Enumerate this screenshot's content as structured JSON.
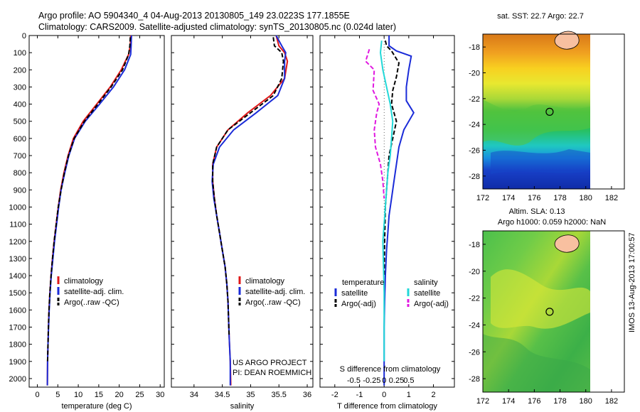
{
  "title": {
    "line1": "Argo profile: AO 5904340_4 04-Aug-2013 20130805_149 23.0223S 177.1855E",
    "line2": "Climatology: CARS2009. Satellite-adjusted climatology: synTS_20130805.nc (0.024d later)"
  },
  "side_label": "IMOS 13-Aug-2013 17:00:57",
  "colors": {
    "climatology": "#e01818",
    "satellite": "#1a2bd8",
    "argo": "#000000",
    "sal_sat": "#22d8d8",
    "sal_argo": "#e018e0",
    "land": "#f8c0a0"
  },
  "chart_data": [
    {
      "type": "line",
      "xlabel": "temperature (deg C)",
      "ylabel": "",
      "xlim": [
        -2,
        31
      ],
      "ylim": [
        2050,
        0
      ],
      "x_ticks": [
        0,
        5,
        10,
        15,
        20,
        25,
        30
      ],
      "y_ticks": [
        0,
        100,
        200,
        300,
        400,
        500,
        600,
        700,
        800,
        900,
        1000,
        1100,
        1200,
        1300,
        1400,
        1500,
        1600,
        1700,
        1800,
        1900,
        2000
      ],
      "legend": [
        "climatology",
        "satellite-adj. clim.",
        "Argo(..raw -QC)"
      ],
      "series": [
        {
          "name": "climatology",
          "color_key": "climatology",
          "x": [
            22.8,
            22.7,
            22.3,
            20.5,
            17.8,
            14.5,
            11.2,
            8.8,
            7.5,
            6.5,
            5.7,
            5.1,
            4.6,
            4.1,
            3.7,
            3.35,
            3.05,
            2.85,
            2.7,
            2.6,
            2.5,
            2.45
          ],
          "y": [
            0,
            60,
            110,
            200,
            300,
            400,
            500,
            600,
            700,
            800,
            900,
            1000,
            1100,
            1200,
            1300,
            1400,
            1500,
            1600,
            1700,
            1800,
            1900,
            2040
          ]
        },
        {
          "name": "satellite-adj. clim.",
          "color_key": "satellite",
          "x": [
            23.0,
            22.9,
            22.8,
            21.3,
            18.6,
            15.2,
            11.7,
            9.1,
            7.7,
            6.7,
            5.8,
            5.2,
            4.7,
            4.2,
            3.8,
            3.4,
            3.1,
            2.9,
            2.75,
            2.6,
            2.5,
            2.45
          ],
          "y": [
            0,
            60,
            110,
            200,
            300,
            400,
            500,
            600,
            700,
            800,
            900,
            1000,
            1100,
            1200,
            1300,
            1400,
            1500,
            1600,
            1700,
            1800,
            1900,
            2040
          ]
        },
        {
          "name": "Argo(..raw -QC)",
          "color_key": "argo",
          "dashed": true,
          "x": [
            22.7,
            22.6,
            22.3,
            20.8,
            18.0,
            14.8,
            11.5,
            9.0,
            7.6,
            6.6,
            5.8,
            5.1,
            4.6,
            4.1,
            3.7,
            3.35,
            3.05,
            2.85,
            2.7,
            2.6,
            2.5
          ],
          "y": [
            10,
            60,
            110,
            200,
            300,
            400,
            500,
            600,
            700,
            800,
            900,
            1000,
            1100,
            1200,
            1300,
            1400,
            1500,
            1600,
            1700,
            1800,
            1900
          ]
        }
      ]
    },
    {
      "type": "line",
      "xlabel": "salinity",
      "xlim": [
        33.6,
        36.1
      ],
      "ylim": [
        2050,
        0
      ],
      "x_ticks": [
        34,
        34.5,
        35,
        35.5,
        36
      ],
      "legend": [
        "climatology",
        "satellite-adj. clim.",
        "Argo(..raw -QC)"
      ],
      "annotation": [
        "US ARGO PROJECT",
        "PI: DEAN ROEMMICH"
      ],
      "series": [
        {
          "name": "climatology",
          "color_key": "climatology",
          "x": [
            35.45,
            35.5,
            35.6,
            35.65,
            35.6,
            35.35,
            34.95,
            34.6,
            34.4,
            34.33,
            34.33,
            34.36,
            34.4,
            34.45,
            34.5,
            34.55,
            34.58,
            34.6,
            34.61,
            34.62,
            34.64,
            34.65
          ],
          "y": [
            0,
            60,
            100,
            150,
            250,
            350,
            450,
            550,
            650,
            750,
            850,
            950,
            1050,
            1150,
            1250,
            1350,
            1450,
            1550,
            1650,
            1750,
            1900,
            2040
          ]
        },
        {
          "name": "satellite-adj. clim.",
          "color_key": "satellite",
          "x": [
            35.45,
            35.55,
            35.62,
            35.6,
            35.6,
            35.48,
            35.1,
            34.7,
            34.45,
            34.34,
            34.32,
            34.35,
            34.4,
            34.45,
            34.5,
            34.55,
            34.58,
            34.6,
            34.61,
            34.62,
            34.64,
            34.64
          ],
          "y": [
            0,
            60,
            100,
            150,
            250,
            350,
            450,
            550,
            650,
            750,
            850,
            950,
            1050,
            1150,
            1250,
            1350,
            1450,
            1550,
            1650,
            1750,
            1900,
            2040
          ]
        },
        {
          "name": "Argo(..raw -QC)",
          "color_key": "argo",
          "dashed": true,
          "x": [
            35.4,
            35.42,
            35.55,
            35.58,
            35.55,
            35.4,
            35.0,
            34.6,
            34.4,
            34.33,
            34.33,
            34.36,
            34.4,
            34.45,
            34.5,
            34.55,
            34.58,
            34.6,
            34.61,
            34.62
          ],
          "y": [
            10,
            60,
            100,
            150,
            250,
            350,
            450,
            550,
            650,
            750,
            850,
            950,
            1050,
            1150,
            1250,
            1350,
            1450,
            1550,
            1650,
            1750
          ]
        }
      ]
    },
    {
      "type": "line",
      "xlabel": "T difference from climatology",
      "x_secondary_label": "S difference from climatology",
      "xlim": [
        -2.6,
        2.85
      ],
      "ylim": [
        2050,
        0
      ],
      "x_ticks": [
        -2,
        -1,
        0,
        1,
        2
      ],
      "x_secondary_ticks": [
        "-0.5",
        "-0.25",
        "0",
        "0.25",
        "0.5"
      ],
      "legend_groups": [
        {
          "title": "temperature",
          "items": [
            "satellite",
            "Argo(-adj)"
          ]
        },
        {
          "title": "salinity",
          "items": [
            "satellite",
            "Argo(-adj)"
          ]
        }
      ],
      "series": [
        {
          "name": "temperature satellite",
          "color_key": "satellite",
          "x": [
            0.2,
            0.2,
            0.5,
            1.1,
            1.0,
            0.9,
            0.9,
            1.2,
            0.8,
            0.6,
            0.5,
            0.4,
            0.3,
            0.2,
            0.15,
            0.1,
            0.05,
            0.02,
            0,
            0,
            0
          ],
          "y": [
            0,
            60,
            90,
            120,
            200,
            300,
            380,
            450,
            550,
            650,
            750,
            850,
            950,
            1050,
            1150,
            1250,
            1400,
            1550,
            1700,
            1900,
            2040
          ]
        },
        {
          "name": "temperature Argo(-adj)",
          "color_key": "argo",
          "dashed": true,
          "x": [
            0.05,
            0.1,
            0.3,
            0.6,
            0.5,
            0.35,
            0.3,
            0.5,
            0.35,
            0.2,
            0.15,
            0.1,
            0.05,
            0.02,
            0
          ],
          "y": [
            30,
            60,
            90,
            160,
            240,
            320,
            400,
            500,
            600,
            700,
            800,
            900,
            1000,
            1200,
            1400
          ]
        },
        {
          "name": "salinity satellite",
          "color_key": "sal_sat",
          "x": [
            -0.1,
            -0.15,
            -0.05,
            0.1,
            0.25,
            0.35,
            0.3,
            0.25,
            0.15,
            0.05,
            -0.05,
            0,
            0
          ],
          "y": [
            30,
            100,
            200,
            300,
            400,
            500,
            600,
            700,
            800,
            1000,
            1200,
            1500,
            1900
          ]
        },
        {
          "name": "salinity Argo(-adj)",
          "color_key": "sal_argo",
          "dashed": true,
          "x": [
            -0.6,
            -0.75,
            -0.4,
            -0.45,
            -0.2,
            -0.3,
            -0.4,
            -0.35,
            -0.15,
            -0.05,
            0
          ],
          "y": [
            80,
            150,
            200,
            320,
            400,
            450,
            550,
            650,
            750,
            850,
            950
          ]
        }
      ]
    },
    {
      "type": "heatmap",
      "title": "sat. SST: 22.7  Argo: 22.7",
      "xlim": [
        172,
        183
      ],
      "ylim": [
        -29,
        -17
      ],
      "x_ticks": [
        172,
        174,
        176,
        178,
        180,
        182
      ],
      "y_ticks": [
        -18,
        -20,
        -22,
        -24,
        -26,
        -28
      ],
      "marker": {
        "lon": 177.19,
        "lat": -23.02
      }
    },
    {
      "type": "heatmap",
      "title": [
        "Altim. SLA: 0.13",
        "Argo h1000: 0.059 h2000: NaN"
      ],
      "xlim": [
        172,
        183
      ],
      "ylim": [
        -29,
        -17
      ],
      "x_ticks": [
        172,
        174,
        176,
        178,
        180,
        182
      ],
      "y_ticks": [
        -18,
        -20,
        -22,
        -24,
        -26,
        -28
      ],
      "marker": {
        "lon": 177.19,
        "lat": -23.02
      }
    }
  ]
}
